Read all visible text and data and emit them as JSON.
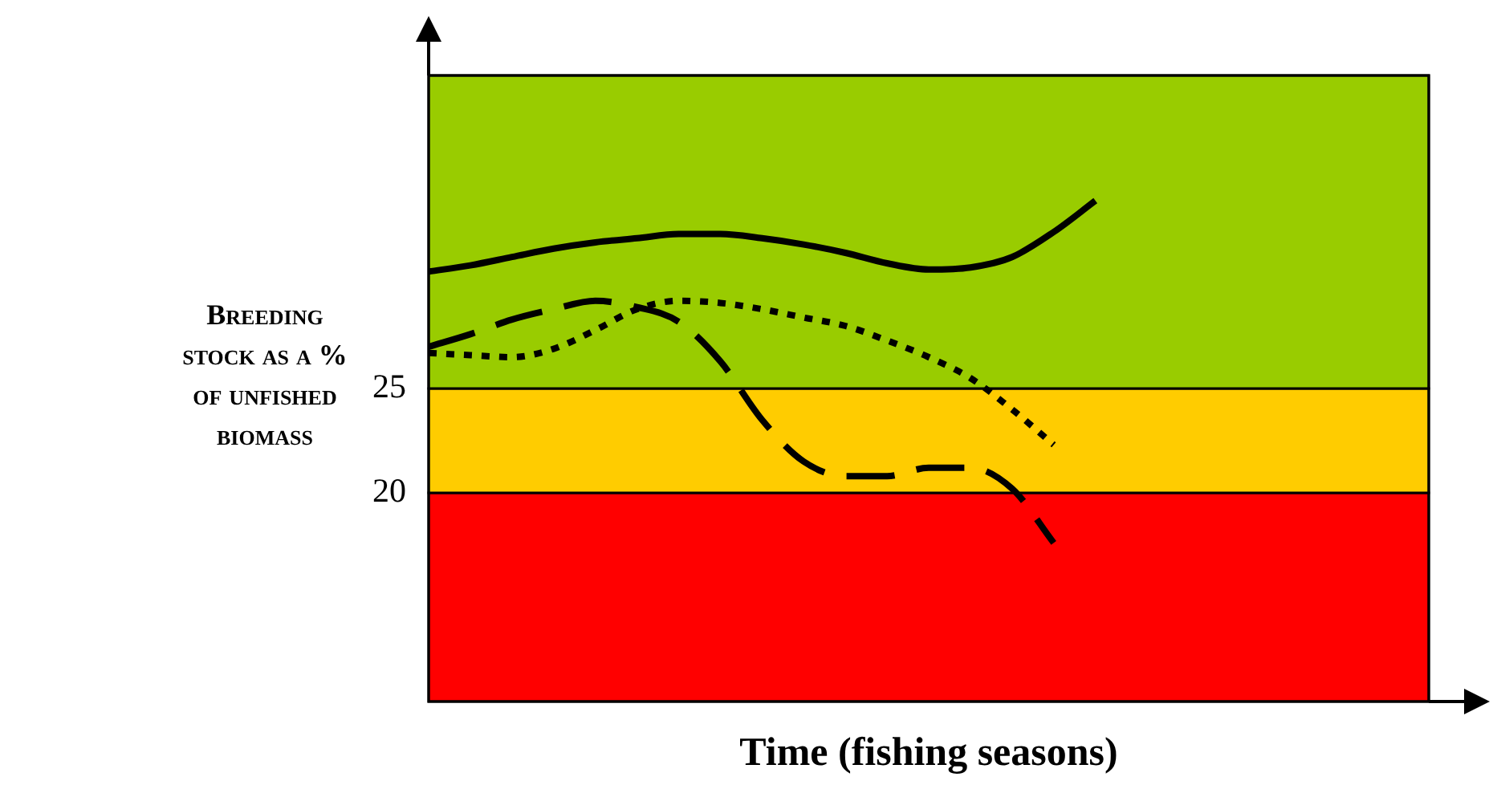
{
  "chart_data": {
    "type": "line",
    "xlabel": "Time (fishing seasons)",
    "ylabel": "Breeding stock as a % of unfished biomass",
    "categories": [
      null,
      null,
      null,
      null,
      null,
      null,
      null,
      null,
      null,
      null,
      null,
      null,
      null,
      null,
      null,
      null,
      null,
      null,
      null,
      null,
      null,
      null,
      null,
      null,
      null
    ],
    "series": [
      {
        "color": "#000000",
        "line_style": "solid",
        "values": [
          30.6,
          30.9,
          31.3,
          31.7,
          32.0,
          32.2,
          32.4,
          32.4,
          32.2,
          31.9,
          31.5,
          31.0,
          30.7,
          30.8,
          31.3,
          32.5,
          34.0,
          null,
          null,
          null,
          null,
          null,
          null,
          null,
          null
        ]
      },
      {
        "color": "#000000",
        "line_style": "dashed",
        "values": [
          27.0,
          27.6,
          28.3,
          28.8,
          29.2,
          28.9,
          28.2,
          26.3,
          23.5,
          21.5,
          20.8,
          20.8,
          21.2,
          21.2,
          20.2,
          17.6,
          null,
          null,
          null,
          null,
          null,
          null,
          null,
          null,
          null
        ]
      },
      {
        "color": "#000000",
        "line_style": "dotted",
        "values": [
          26.7,
          26.6,
          26.5,
          26.9,
          27.8,
          28.8,
          29.2,
          29.1,
          28.8,
          28.4,
          28.0,
          27.3,
          26.5,
          25.5,
          24.0,
          22.3,
          null,
          null,
          null,
          null,
          null,
          null,
          null,
          null,
          null
        ]
      }
    ],
    "ylim": [
      10,
      40
    ],
    "yticks": [
      25,
      20
    ],
    "bands": [
      {
        "axis": "y",
        "from": 10,
        "to": 20,
        "color": "#ff0000"
      },
      {
        "axis": "y",
        "from": 20,
        "to": 25,
        "color": "#ffcc00"
      },
      {
        "axis": "y",
        "from": 25,
        "to": 40,
        "color": "#99cc00"
      }
    ],
    "legend": false,
    "marker": "none"
  }
}
